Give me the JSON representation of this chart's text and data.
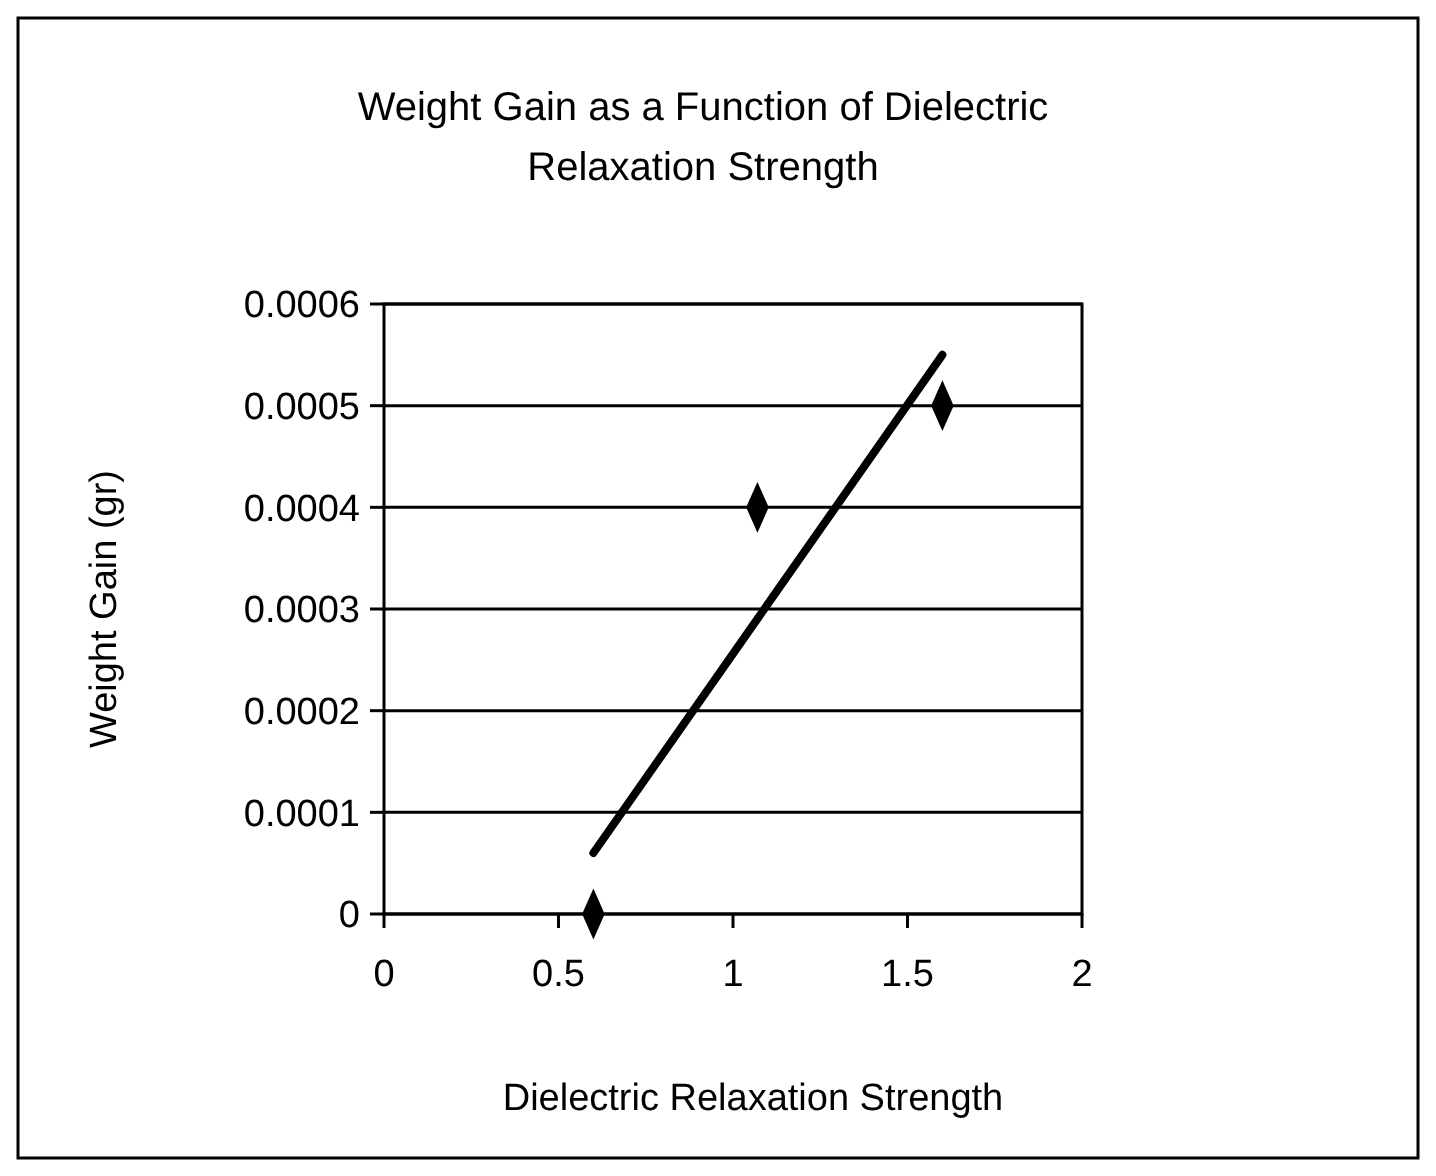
{
  "chart_data": {
    "type": "scatter",
    "title": "Weight Gain as a Function of Dielectric Relaxation Strength",
    "xlabel": "Dielectric Relaxation Strength",
    "ylabel": "Weight Gain (gr)",
    "xlim": [
      0,
      2
    ],
    "xticks": [
      0,
      0.5,
      1,
      1.5,
      2
    ],
    "ylim": [
      0,
      0.0006
    ],
    "yticks": [
      0,
      0.0001,
      0.0002,
      0.0003,
      0.0004,
      0.0005,
      0.0006
    ],
    "grid": "y",
    "series": [
      {
        "color": "#000000",
        "marker": "diamond",
        "x": [
          0.6,
          1.07,
          1.6
        ],
        "values": [
          0,
          0.0004,
          0.0005
        ]
      },
      {
        "type": "line",
        "color": "#000000",
        "x": [
          0.6,
          1.6
        ],
        "values": [
          6e-05,
          0.00055
        ]
      }
    ]
  }
}
